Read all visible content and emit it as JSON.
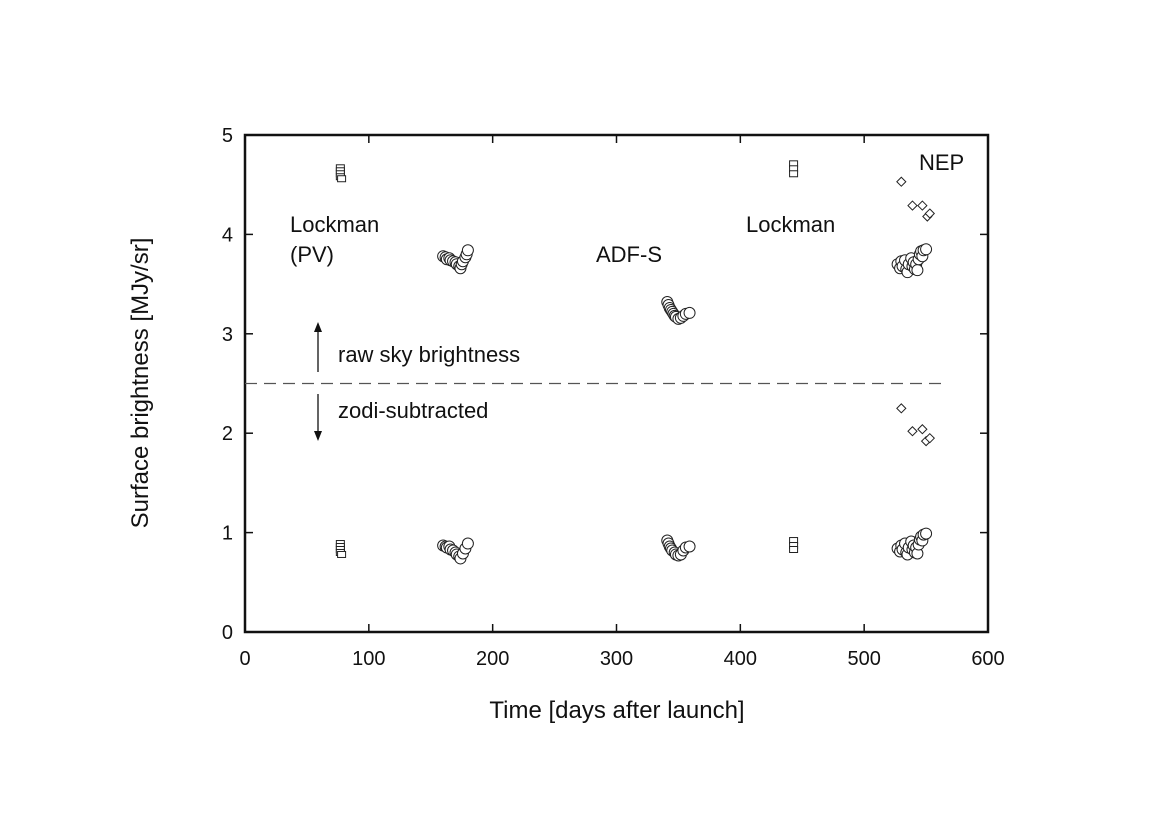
{
  "chart_data": {
    "type": "scatter",
    "xlabel": "Time [days after launch]",
    "ylabel": "Surface brightness [MJy/sr]",
    "xlim": [
      0,
      600
    ],
    "ylim": [
      0,
      5
    ],
    "xticks": [
      0,
      100,
      200,
      300,
      400,
      500,
      600
    ],
    "yticks": [
      0,
      1,
      2,
      3,
      4,
      5
    ],
    "grid": false,
    "divider_y": 2.5,
    "annotations": {
      "lockman_pv": [
        "Lockman",
        "(PV)"
      ],
      "adfs": "ADF-S",
      "lockman": "Lockman",
      "nep": "NEP",
      "raw": "raw sky brightness",
      "zodi": "zodi-subtracted"
    },
    "series": [
      {
        "marker": "square",
        "points": [
          [
            77,
            4.67
          ],
          [
            77,
            4.64
          ],
          [
            77,
            4.61
          ],
          [
            77,
            4.58
          ],
          [
            78,
            4.56
          ],
          [
            77,
            0.89
          ],
          [
            77,
            0.86
          ],
          [
            77,
            0.83
          ],
          [
            77,
            0.8
          ],
          [
            78,
            0.78
          ],
          [
            443,
            4.71
          ],
          [
            443,
            4.66
          ],
          [
            443,
            4.61
          ],
          [
            443,
            0.92
          ],
          [
            443,
            0.87
          ],
          [
            443,
            0.83
          ]
        ]
      },
      {
        "marker": "circle",
        "points": [
          [
            160,
            3.78
          ],
          [
            162,
            3.77
          ],
          [
            163,
            3.75
          ],
          [
            165,
            3.76
          ],
          [
            166,
            3.74
          ],
          [
            168,
            3.73
          ],
          [
            170,
            3.72
          ],
          [
            171,
            3.7
          ],
          [
            173,
            3.68
          ],
          [
            174,
            3.66
          ],
          [
            175,
            3.7
          ],
          [
            176,
            3.73
          ],
          [
            178,
            3.77
          ],
          [
            179,
            3.8
          ],
          [
            180,
            3.84
          ],
          [
            160,
            0.87
          ],
          [
            162,
            0.86
          ],
          [
            163,
            0.85
          ],
          [
            165,
            0.86
          ],
          [
            166,
            0.83
          ],
          [
            168,
            0.82
          ],
          [
            170,
            0.8
          ],
          [
            171,
            0.78
          ],
          [
            173,
            0.76
          ],
          [
            174,
            0.74
          ],
          [
            176,
            0.79
          ],
          [
            178,
            0.84
          ],
          [
            180,
            0.89
          ],
          [
            341,
            3.32
          ],
          [
            342,
            3.29
          ],
          [
            343,
            3.26
          ],
          [
            344,
            3.24
          ],
          [
            345,
            3.22
          ],
          [
            346,
            3.2
          ],
          [
            347,
            3.18
          ],
          [
            348,
            3.17
          ],
          [
            350,
            3.15
          ],
          [
            352,
            3.16
          ],
          [
            354,
            3.18
          ],
          [
            356,
            3.2
          ],
          [
            359,
            3.21
          ],
          [
            341,
            0.92
          ],
          [
            342,
            0.89
          ],
          [
            343,
            0.86
          ],
          [
            344,
            0.84
          ],
          [
            345,
            0.82
          ],
          [
            347,
            0.8
          ],
          [
            348,
            0.78
          ],
          [
            350,
            0.77
          ],
          [
            352,
            0.78
          ],
          [
            354,
            0.82
          ],
          [
            356,
            0.85
          ],
          [
            359,
            0.86
          ],
          [
            527,
            3.7
          ],
          [
            529,
            3.66
          ],
          [
            530,
            3.73
          ],
          [
            531,
            3.68
          ],
          [
            533,
            3.74
          ],
          [
            534,
            3.65
          ],
          [
            535,
            3.62
          ],
          [
            536,
            3.7
          ],
          [
            538,
            3.76
          ],
          [
            539,
            3.68
          ],
          [
            540,
            3.72
          ],
          [
            541,
            3.65
          ],
          [
            542,
            3.7
          ],
          [
            543,
            3.64
          ],
          [
            544,
            3.75
          ],
          [
            545,
            3.8
          ],
          [
            546,
            3.83
          ],
          [
            547,
            3.78
          ],
          [
            548,
            3.84
          ],
          [
            550,
            3.85
          ],
          [
            527,
            0.84
          ],
          [
            529,
            0.81
          ],
          [
            530,
            0.87
          ],
          [
            531,
            0.83
          ],
          [
            533,
            0.89
          ],
          [
            534,
            0.8
          ],
          [
            535,
            0.78
          ],
          [
            536,
            0.85
          ],
          [
            538,
            0.91
          ],
          [
            539,
            0.83
          ],
          [
            540,
            0.87
          ],
          [
            541,
            0.8
          ],
          [
            542,
            0.85
          ],
          [
            543,
            0.79
          ],
          [
            544,
            0.88
          ],
          [
            545,
            0.93
          ],
          [
            546,
            0.96
          ],
          [
            547,
            0.92
          ],
          [
            548,
            0.98
          ],
          [
            550,
            0.99
          ]
        ]
      },
      {
        "marker": "diamond",
        "points": [
          [
            530,
            4.53
          ],
          [
            539,
            4.29
          ],
          [
            547,
            4.29
          ],
          [
            551,
            4.18
          ],
          [
            553,
            4.21
          ],
          [
            530,
            2.25
          ],
          [
            539,
            2.02
          ],
          [
            547,
            2.04
          ],
          [
            550,
            1.92
          ],
          [
            553,
            1.95
          ]
        ]
      }
    ]
  }
}
